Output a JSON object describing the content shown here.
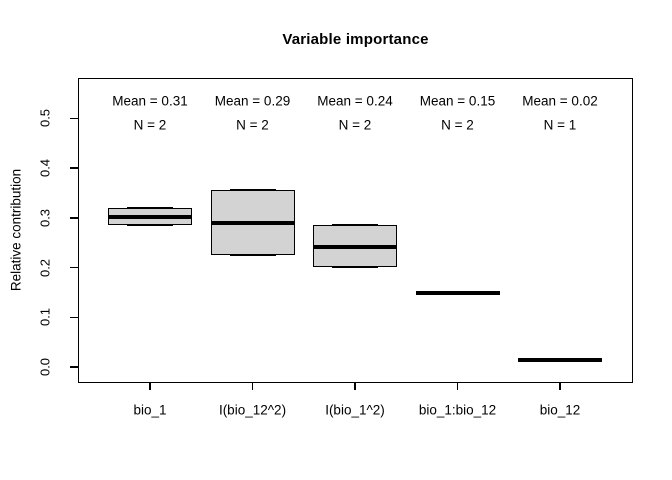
{
  "chart_data": {
    "type": "boxplot",
    "title": "Variable importance",
    "xlabel": "",
    "ylabel": "Relative contribution",
    "categories": [
      "bio_1",
      "I(bio_12^2)",
      "I(bio_1^2)",
      "bio_1:bio_12",
      "bio_12"
    ],
    "yticks": [
      "0.0",
      "0.1",
      "0.2",
      "0.3",
      "0.4",
      "0.5"
    ],
    "ylim": [
      -0.032,
      0.581
    ],
    "grid": false,
    "legend": null,
    "annotations": {
      "mean_labels": [
        "Mean = 0.31",
        "Mean = 0.29",
        "Mean = 0.24",
        "Mean = 0.15",
        "Mean = 0.02"
      ],
      "n_labels": [
        "N = 2",
        "N = 2",
        "N = 2",
        "N = 2",
        "N = 1"
      ]
    },
    "boxes": [
      {
        "category": "bio_1",
        "min": 0.285,
        "median": 0.302,
        "max": 0.319,
        "mean": 0.31,
        "n": 2
      },
      {
        "category": "I(bio_12^2)",
        "min": 0.225,
        "median": 0.289,
        "max": 0.355,
        "mean": 0.29,
        "n": 2
      },
      {
        "category": "I(bio_1^2)",
        "min": 0.202,
        "median": 0.241,
        "max": 0.285,
        "mean": 0.24,
        "n": 2
      },
      {
        "category": "bio_1:bio_12",
        "min": 0.146,
        "median": 0.148,
        "max": 0.15,
        "mean": 0.15,
        "n": 2
      },
      {
        "category": "bio_12",
        "min": 0.015,
        "median": 0.015,
        "max": 0.015,
        "mean": 0.02,
        "n": 1
      }
    ],
    "colors": {
      "box_fill": "#d3d3d3",
      "line": "#000000",
      "text": "#000000",
      "background": "#ffffff"
    }
  }
}
